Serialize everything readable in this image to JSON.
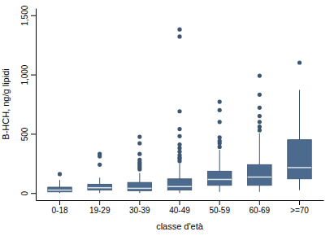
{
  "chart_data": {
    "type": "box",
    "x_label": "classe d'età",
    "y_label": "B-HCH, ng/g lipidi",
    "categories": [
      "0-18",
      "19-29",
      "30-39",
      "40-49",
      "50-59",
      "60-69",
      ">=70"
    ],
    "boxes": [
      {
        "low": 0,
        "q1": 10,
        "median": 25,
        "q3": 50,
        "high": 110,
        "outliers": [
          160
        ]
      },
      {
        "low": 0,
        "q1": 25,
        "median": 45,
        "q3": 75,
        "high": 130,
        "outliers": [
          240,
          310,
          330
        ]
      },
      {
        "low": 0,
        "q1": 20,
        "median": 40,
        "q3": 90,
        "high": 170,
        "outliers": [
          200,
          215,
          230,
          245,
          260,
          280,
          330,
          420,
          475
        ]
      },
      {
        "low": 0,
        "q1": 25,
        "median": 55,
        "q3": 120,
        "high": 250,
        "outliers": [
          270,
          290,
          300,
          320,
          350,
          380,
          410,
          480,
          540,
          690,
          1320,
          1380
        ]
      },
      {
        "low": 10,
        "q1": 65,
        "median": 115,
        "q3": 185,
        "high": 365,
        "outliers": [
          390,
          420,
          440,
          470,
          600,
          700,
          770
        ]
      },
      {
        "low": 10,
        "q1": 65,
        "median": 135,
        "q3": 240,
        "high": 505,
        "outliers": [
          530,
          560,
          600,
          650,
          720,
          830,
          990
        ]
      },
      {
        "low": 25,
        "q1": 120,
        "median": 215,
        "q3": 450,
        "high": 870,
        "outliers": [
          1100
        ]
      }
    ],
    "color": "#4b6a8d",
    "marker": "circle",
    "ylim": [
      -60,
      1560
    ],
    "yticks": [
      0,
      500,
      {
        "value": 1000,
        "label": "1,000"
      },
      {
        "value": 1500,
        "label": "1,500"
      }
    ],
    "grid": false
  }
}
